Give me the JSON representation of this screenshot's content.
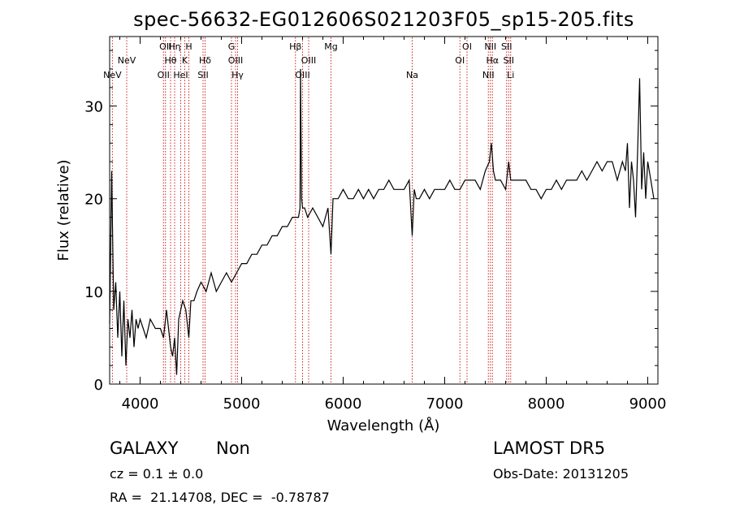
{
  "title": "spec-56632-EG012606S021203F05_sp15-205.fits",
  "info": {
    "class": "GALAXY",
    "subclass": "Non",
    "cz": "cz = 0.1 ± 0.0",
    "radec": "RA =  21.14708, DEC =  -0.78787",
    "survey": "LAMOST DR5",
    "obs_date": "Obs-Date: 20131205"
  },
  "colors": {
    "spectrum": "#000000",
    "line_marker": "#cc2222"
  },
  "chart_data": {
    "type": "line",
    "xlabel": "Wavelength (Å)",
    "ylabel": "Flux (relative)",
    "xlim": [
      3700,
      9100
    ],
    "ylim": [
      0,
      37.5
    ],
    "xticks": [
      4000,
      5000,
      6000,
      7000,
      8000,
      9000
    ],
    "yticks": [
      0,
      10,
      20,
      30
    ],
    "grid": false,
    "series": [
      {
        "x": [
          3700,
          3720,
          3740,
          3760,
          3780,
          3800,
          3820,
          3840,
          3860,
          3880,
          3900,
          3920,
          3940,
          3960,
          3980,
          4000,
          4030,
          4060,
          4100,
          4150,
          4200,
          4230,
          4260,
          4280,
          4300,
          4320,
          4340,
          4360,
          4380,
          4400,
          4420,
          4450,
          4480,
          4500,
          4530,
          4560,
          4600,
          4650,
          4700,
          4750,
          4800,
          4850,
          4900,
          4950,
          5000,
          5050,
          5100,
          5150,
          5200,
          5250,
          5300,
          5350,
          5400,
          5450,
          5500,
          5540,
          5560,
          5575,
          5580,
          5590,
          5600,
          5620,
          5650,
          5700,
          5750,
          5800,
          5850,
          5880,
          5900,
          5950,
          6000,
          6050,
          6100,
          6150,
          6200,
          6250,
          6300,
          6350,
          6400,
          6450,
          6500,
          6550,
          6600,
          6650,
          6680,
          6700,
          6720,
          6750,
          6800,
          6850,
          6900,
          6950,
          7000,
          7050,
          7100,
          7150,
          7200,
          7250,
          7300,
          7350,
          7400,
          7440,
          7460,
          7480,
          7500,
          7550,
          7600,
          7630,
          7650,
          7700,
          7750,
          7800,
          7850,
          7900,
          7950,
          8000,
          8050,
          8100,
          8150,
          8200,
          8250,
          8300,
          8350,
          8400,
          8450,
          8500,
          8550,
          8600,
          8650,
          8700,
          8750,
          8780,
          8800,
          8820,
          8840,
          8860,
          8880,
          8900,
          8920,
          8940,
          8960,
          8980,
          9000,
          9030,
          9060
        ],
        "y": [
          6.5,
          23,
          8,
          11,
          5,
          10,
          3,
          9,
          2,
          7,
          5,
          8,
          4,
          7,
          6,
          7,
          6,
          5,
          7,
          6,
          6,
          5,
          8,
          6,
          4,
          3,
          5,
          1,
          7,
          8,
          9,
          8,
          5,
          9,
          9,
          10,
          11,
          10,
          12,
          10,
          11,
          12,
          11,
          12,
          13,
          13,
          14,
          14,
          15,
          15,
          16,
          16,
          17,
          17,
          18,
          18,
          18,
          19,
          34,
          20,
          19,
          19,
          18,
          19,
          18,
          17,
          19,
          14,
          20,
          20,
          21,
          20,
          20,
          21,
          20,
          21,
          20,
          21,
          21,
          22,
          21,
          21,
          21,
          22,
          16,
          21,
          20,
          20,
          21,
          20,
          21,
          21,
          21,
          22,
          21,
          21,
          22,
          22,
          22,
          21,
          23,
          24,
          26,
          23,
          22,
          22,
          21,
          24,
          22,
          22,
          22,
          22,
          21,
          21,
          20,
          21,
          21,
          22,
          21,
          22,
          22,
          22,
          23,
          22,
          23,
          24,
          23,
          24,
          24,
          22,
          24,
          23,
          26,
          19,
          24,
          22,
          18,
          25,
          33,
          21,
          25,
          20,
          24,
          22,
          20
        ]
      }
    ],
    "lines": [
      {
        "label": "NeV",
        "x": 3727,
        "row": 2
      },
      {
        "label": "NeV",
        "x": 3868,
        "row": 1
      },
      {
        "label": "OII",
        "x": 4230,
        "row": 2
      },
      {
        "label": "OII",
        "x": 4250,
        "row": 0
      },
      {
        "label": "Hθ",
        "x": 4300,
        "row": 1
      },
      {
        "label": "Hη",
        "x": 4340,
        "row": 0
      },
      {
        "label": "HeI",
        "x": 4400,
        "row": 2
      },
      {
        "label": "K",
        "x": 4440,
        "row": 1
      },
      {
        "label": "H",
        "x": 4480,
        "row": 0
      },
      {
        "label": "SII",
        "x": 4620,
        "row": 2
      },
      {
        "label": "Hδ",
        "x": 4640,
        "row": 1
      },
      {
        "label": "G",
        "x": 4900,
        "row": 0
      },
      {
        "label": "OIII",
        "x": 4940,
        "row": 1
      },
      {
        "label": "Hγ",
        "x": 4960,
        "row": 2
      },
      {
        "label": "Hβ",
        "x": 5530,
        "row": 0
      },
      {
        "label": "OIII",
        "x": 5600,
        "row": 2
      },
      {
        "label": "OIII",
        "x": 5660,
        "row": 1
      },
      {
        "label": "Mg",
        "x": 5880,
        "row": 0
      },
      {
        "label": "Na",
        "x": 6680,
        "row": 2
      },
      {
        "label": "OI",
        "x": 7150,
        "row": 1
      },
      {
        "label": "OI",
        "x": 7220,
        "row": 0
      },
      {
        "label": "NII",
        "x": 7430,
        "row": 2
      },
      {
        "label": "NII",
        "x": 7450,
        "row": 0
      },
      {
        "label": "Hα",
        "x": 7470,
        "row": 1
      },
      {
        "label": "SII",
        "x": 7610,
        "row": 0
      },
      {
        "label": "SII",
        "x": 7630,
        "row": 1
      },
      {
        "label": "Li",
        "x": 7650,
        "row": 2
      }
    ]
  }
}
